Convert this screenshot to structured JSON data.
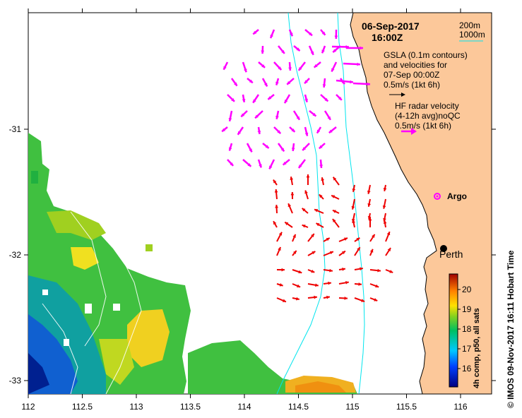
{
  "header": {
    "date": "06-Sep-2017",
    "time": "16:00Z"
  },
  "contour_legend": {
    "shallow": "200m",
    "deep": "1000m"
  },
  "gsla_note": {
    "line1": "GSLA (0.1m contours)",
    "line2": "and velocities for",
    "line3": "07-Sep 00:00Z",
    "line4": "0.5m/s (1kt 6h)"
  },
  "radar_note": {
    "line1": "HF radar velocity",
    "line2": "(4-12h avg)noQC",
    "line3": "0.5m/s (1kt 6h)"
  },
  "places": {
    "argo": "Argo",
    "perth": "Perth"
  },
  "axes": {
    "x_ticks": [
      "112",
      "112.5",
      "113",
      "113.5",
      "114",
      "114.5",
      "115",
      "115.5",
      "116"
    ],
    "y_ticks": [
      "-31",
      "-32",
      "-33"
    ]
  },
  "colorbar": {
    "label": "4h comp, p50, all sats",
    "ticks": [
      "20",
      "19",
      "18",
      "17",
      "16"
    ]
  },
  "credit": "© IMOS 09-Nov-2017 16:11 Hobart Time",
  "colors": {
    "land": "#fcc89a",
    "radar_arrows": "#ff00ff",
    "gsla_arrows": "#ee0000",
    "contours": "#00e5ee",
    "argo": "#ff00ff"
  }
}
